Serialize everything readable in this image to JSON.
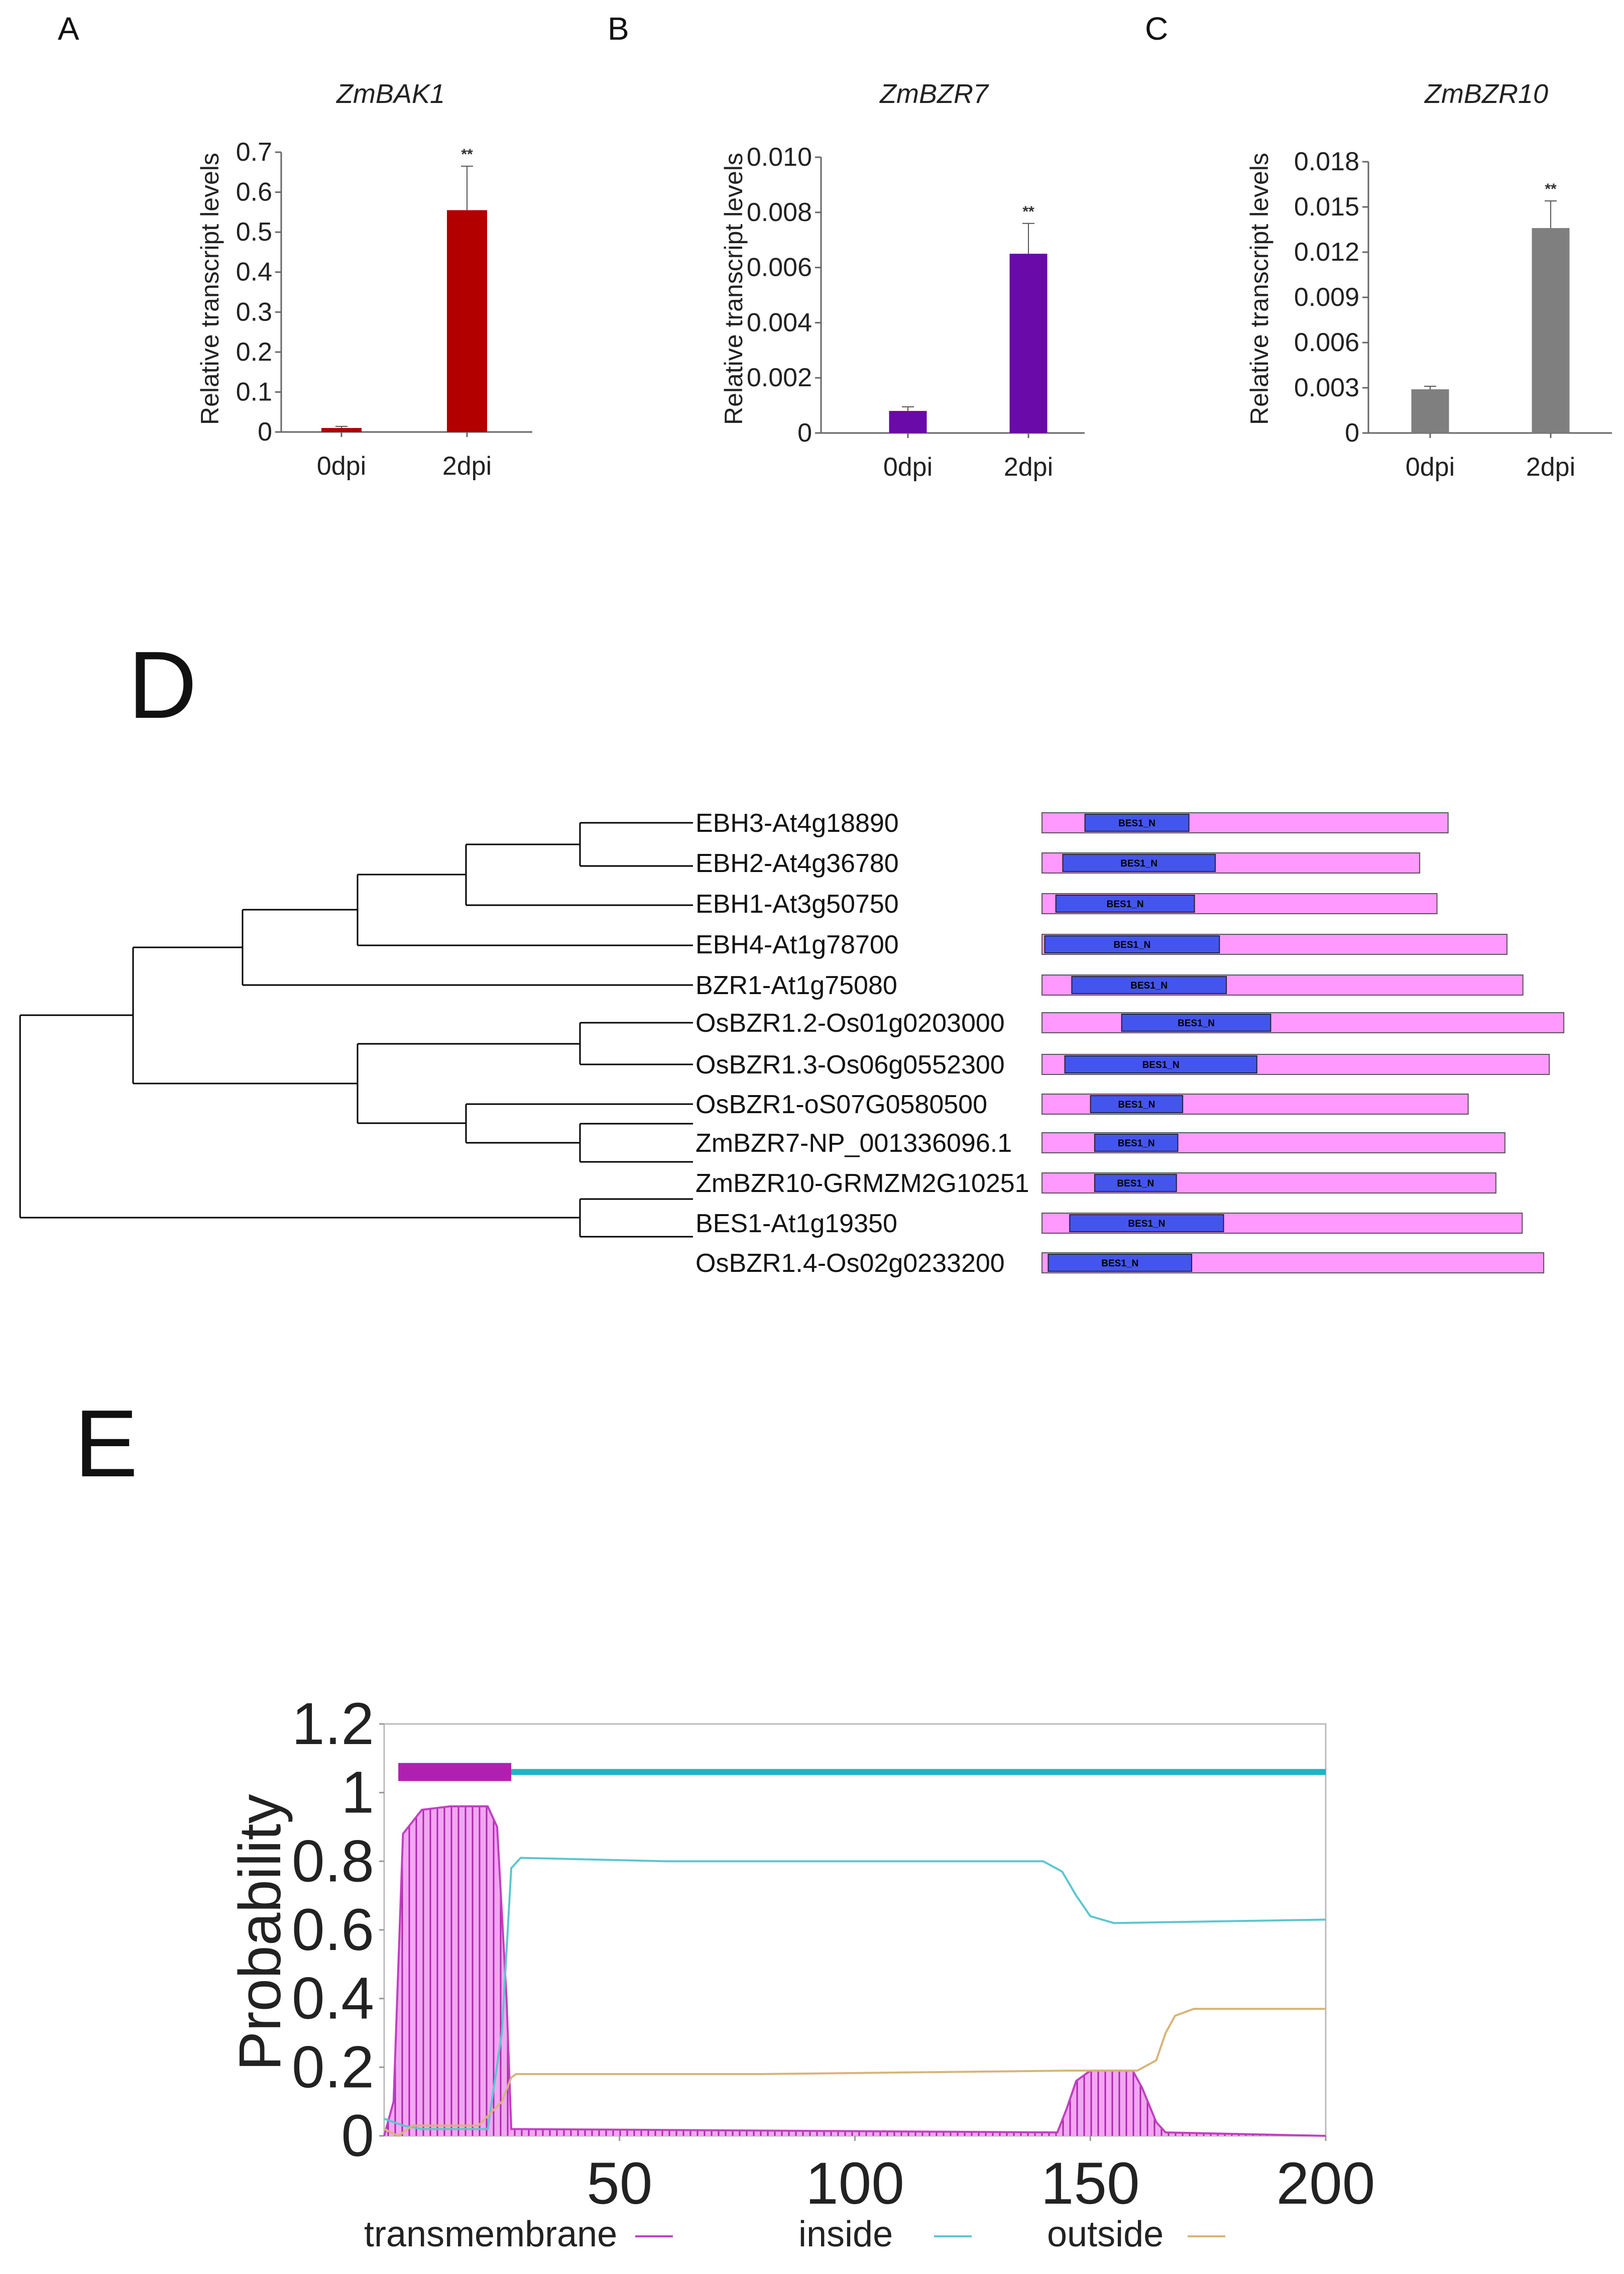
{
  "panels": {
    "a": "A",
    "b": "B",
    "c": "C",
    "d": "D",
    "e": "E"
  },
  "chart_data": [
    {
      "type": "bar",
      "title": "ZmBAK1",
      "ylabel": "Relative transcript levels",
      "xlabel": "",
      "categories": [
        "0dpi",
        "2dpi"
      ],
      "values": [
        0.01,
        0.555
      ],
      "errors": [
        0.004,
        0.11
      ],
      "significance": [
        "",
        "**"
      ],
      "ylim": [
        0,
        0.7
      ],
      "yticks": [
        "0",
        "0.1",
        "0.2",
        "0.3",
        "0.4",
        "0.5",
        "0.6",
        "0.7"
      ],
      "color": "#b20000"
    },
    {
      "type": "bar",
      "title": "ZmBZR7",
      "ylabel": "Relative transcript levels",
      "xlabel": "",
      "categories": [
        "0dpi",
        "2dpi"
      ],
      "values": [
        0.0008,
        0.0065
      ],
      "errors": [
        0.00015,
        0.0011
      ],
      "significance": [
        "",
        "**"
      ],
      "ylim": [
        0,
        0.01
      ],
      "yticks": [
        "0",
        "0.002",
        "0.004",
        "0.006",
        "0.008",
        "0.010"
      ],
      "color": "#6a0aa8"
    },
    {
      "type": "bar",
      "title": "ZmBZR10",
      "ylabel": "Relative transcript levels",
      "xlabel": "",
      "categories": [
        "0dpi",
        "2dpi"
      ],
      "values": [
        0.0029,
        0.0136
      ],
      "errors": [
        0.0002,
        0.0018
      ],
      "significance": [
        "",
        "**"
      ],
      "ylim": [
        0,
        0.018
      ],
      "yticks": [
        "0",
        "0.003",
        "0.006",
        "0.009",
        "0.012",
        "0.015",
        "0.018"
      ],
      "color": "#7f7f7f"
    },
    {
      "type": "line",
      "title": "",
      "ylabel": "Probability",
      "xlabel": "",
      "xlim": [
        0,
        200
      ],
      "ylim": [
        0,
        1.2
      ],
      "xticks": [
        "50",
        "100",
        "150",
        "200"
      ],
      "yticks": [
        "0",
        "0.2",
        "0.4",
        "0.6",
        "0.8",
        "1",
        "1.2"
      ],
      "series": [
        {
          "name": "transmembrane",
          "color": "#c040c0",
          "x": [
            0,
            2,
            4,
            8,
            14,
            22,
            24,
            26,
            27,
            143,
            145,
            147,
            150,
            159,
            161,
            164,
            166,
            200
          ],
          "y": [
            0,
            0.1,
            0.88,
            0.95,
            0.96,
            0.96,
            0.9,
            0.4,
            0.02,
            0.01,
            0.08,
            0.16,
            0.19,
            0.19,
            0.14,
            0.04,
            0.01,
            0
          ]
        },
        {
          "name": "inside",
          "color": "#5cc6d0",
          "x": [
            0,
            2,
            4,
            8,
            22,
            25,
            27,
            29,
            60,
            140,
            144,
            147,
            150,
            155,
            200
          ],
          "y": [
            0.05,
            0.04,
            0.03,
            0.02,
            0.02,
            0.3,
            0.78,
            0.81,
            0.8,
            0.8,
            0.77,
            0.7,
            0.64,
            0.62,
            0.63
          ]
        },
        {
          "name": "outside",
          "color": "#d8b478",
          "x": [
            0,
            3,
            6,
            20,
            25,
            27,
            28,
            80,
            145,
            160,
            164,
            166,
            168,
            172,
            200
          ],
          "y": [
            0.02,
            0.0,
            0.03,
            0.03,
            0.1,
            0.17,
            0.18,
            0.18,
            0.19,
            0.19,
            0.22,
            0.3,
            0.35,
            0.37,
            0.37
          ]
        }
      ],
      "topology_track": {
        "transmembrane_range": [
          3,
          27
        ],
        "inside_range": [
          27,
          200
        ],
        "level": 1.06
      },
      "legend": [
        "transmembrane",
        "inside",
        "outside"
      ]
    }
  ],
  "tree": {
    "leaves": [
      {
        "label": "EBH3-At4g18890",
        "length": 586,
        "dom_start": 62,
        "dom_end": 212
      },
      {
        "label": "EBH2-At4g36780",
        "length": 545,
        "dom_start": 30,
        "dom_end": 250
      },
      {
        "label": "EBH1-At3g50750",
        "length": 570,
        "dom_start": 20,
        "dom_end": 220
      },
      {
        "label": "EBH4-At1g78700",
        "length": 671,
        "dom_start": 4,
        "dom_end": 256
      },
      {
        "label": "BZR1-At1g75080",
        "length": 694,
        "dom_start": 43,
        "dom_end": 266
      },
      {
        "label": "OsBZR1.2-Os01g0203000",
        "length": 753,
        "dom_start": 115,
        "dom_end": 330
      },
      {
        "label": "OsBZR1.3-Os06g0552300",
        "length": 732,
        "dom_start": 33,
        "dom_end": 310
      },
      {
        "label": "OsBZR1-oS07G0580500",
        "length": 615,
        "dom_start": 70,
        "dom_end": 203
      },
      {
        "label": "ZmBZR7-NP_001336096.1",
        "length": 668,
        "dom_start": 76,
        "dom_end": 196
      },
      {
        "label": "ZmBZR10-GRMZM2G10251",
        "length": 655,
        "dom_start": 76,
        "dom_end": 194
      },
      {
        "label": "BES1-At1g19350",
        "length": 693,
        "dom_start": 40,
        "dom_end": 262
      },
      {
        "label": "OsBZR1.4-Os02g0233200",
        "length": 724,
        "dom_start": 9,
        "dom_end": 216
      }
    ],
    "domain_name": "BES1_N",
    "protein_color": "#ff99ff",
    "domain_color": "#4455ee"
  }
}
